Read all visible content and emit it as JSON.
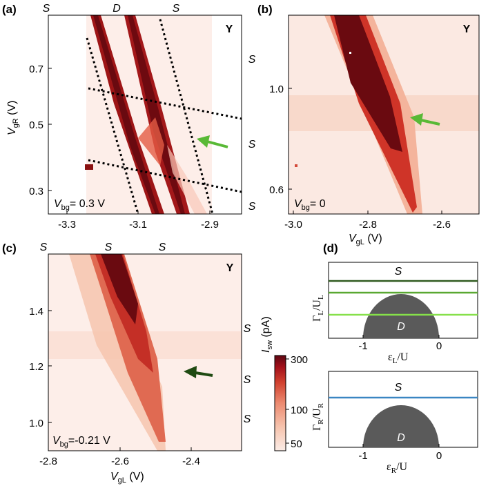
{
  "chart_data": [
    {
      "panel": "(a)",
      "type": "heatmap",
      "ylabel_main": "V",
      "ylabel_sub": "gR",
      "ylabel_unit": " (V)",
      "xticks": [
        "-3.3",
        "-3.1",
        "-2.9"
      ],
      "yticks": [
        "0.7",
        "0.5",
        "0.3"
      ],
      "xlim": [
        -3.3,
        -2.8
      ],
      "ylim": [
        0.22,
        0.95
      ],
      "corner": "Y",
      "top_labels": [
        "S",
        "D",
        "S"
      ],
      "right_labels": [
        "S",
        "S",
        "S"
      ],
      "note_main": "V",
      "note_sub": "bg",
      "note_rest": "= 0.3 V",
      "arrow_color": "#59b936"
    },
    {
      "panel": "(b)",
      "type": "heatmap",
      "xlabel_main": "V",
      "xlabel_sub": "gL",
      "xlabel_unit": " (V)",
      "xticks": [
        "-3.0",
        "-2.8",
        "-2.6"
      ],
      "yticks": [
        "1.0",
        "0.6"
      ],
      "xlim": [
        -3.0,
        -2.45
      ],
      "ylim": [
        0.5,
        1.45
      ],
      "corner": "Y",
      "note_main": "V",
      "note_sub": "bg",
      "note_rest": "= 0",
      "arrow_color": "#59b936"
    },
    {
      "panel": "(c)",
      "type": "heatmap",
      "xlabel_main": "V",
      "xlabel_sub": "gL",
      "xlabel_unit": " (V)",
      "xticks": [
        "-2.8",
        "-2.6",
        "-2.4"
      ],
      "yticks": [
        "1.4",
        "1.2",
        "1.0"
      ],
      "xlim": [
        -2.8,
        -2.27
      ],
      "ylim": [
        0.92,
        1.6
      ],
      "corner": "Y",
      "top_labels": [
        "S",
        "S",
        "S"
      ],
      "right_labels": [
        "S",
        "S",
        "S"
      ],
      "note_main": "V",
      "note_sub": "bg",
      "note_rest": "=-0.21 V",
      "arrow_color": "#1f4a12"
    },
    {
      "panel": "colorbar",
      "type": "heatmap",
      "label_main": "I",
      "label_sub": "sw",
      "label_unit": " (pA)",
      "ticks": [
        "300",
        "100",
        "50"
      ],
      "colors": [
        "#fbece6",
        "#f6c3ad",
        "#ec8a70",
        "#d0402e",
        "#a3101a",
        "#5c0612"
      ]
    },
    {
      "panel": "(d)",
      "type": "diagram",
      "top": {
        "ylabel": "Γ",
        "ylabel_sub": "L",
        "ylabel_div": "/U",
        "ylabel_div_sub": "L",
        "xlabel": "ε",
        "xlabel_sub": "L",
        "xlabel_div": "/U",
        "xticks": [
          "-1",
          "0"
        ],
        "region_top": "S",
        "region_dome": "D",
        "lines": [
          {
            "color": "#2f5a1e"
          },
          {
            "color": "#5aa832"
          },
          {
            "color": "#86e04a"
          }
        ]
      },
      "bottom": {
        "ylabel": "Γ",
        "ylabel_sub": "R",
        "ylabel_div": "/U",
        "ylabel_div_sub": "R",
        "xlabel": "ε",
        "xlabel_sub": "R",
        "xlabel_div": "/U",
        "xticks": [
          "-1",
          "0"
        ],
        "region_top": "S",
        "region_dome": "D",
        "lines": [
          {
            "color": "#3a86c2"
          }
        ]
      }
    }
  ]
}
